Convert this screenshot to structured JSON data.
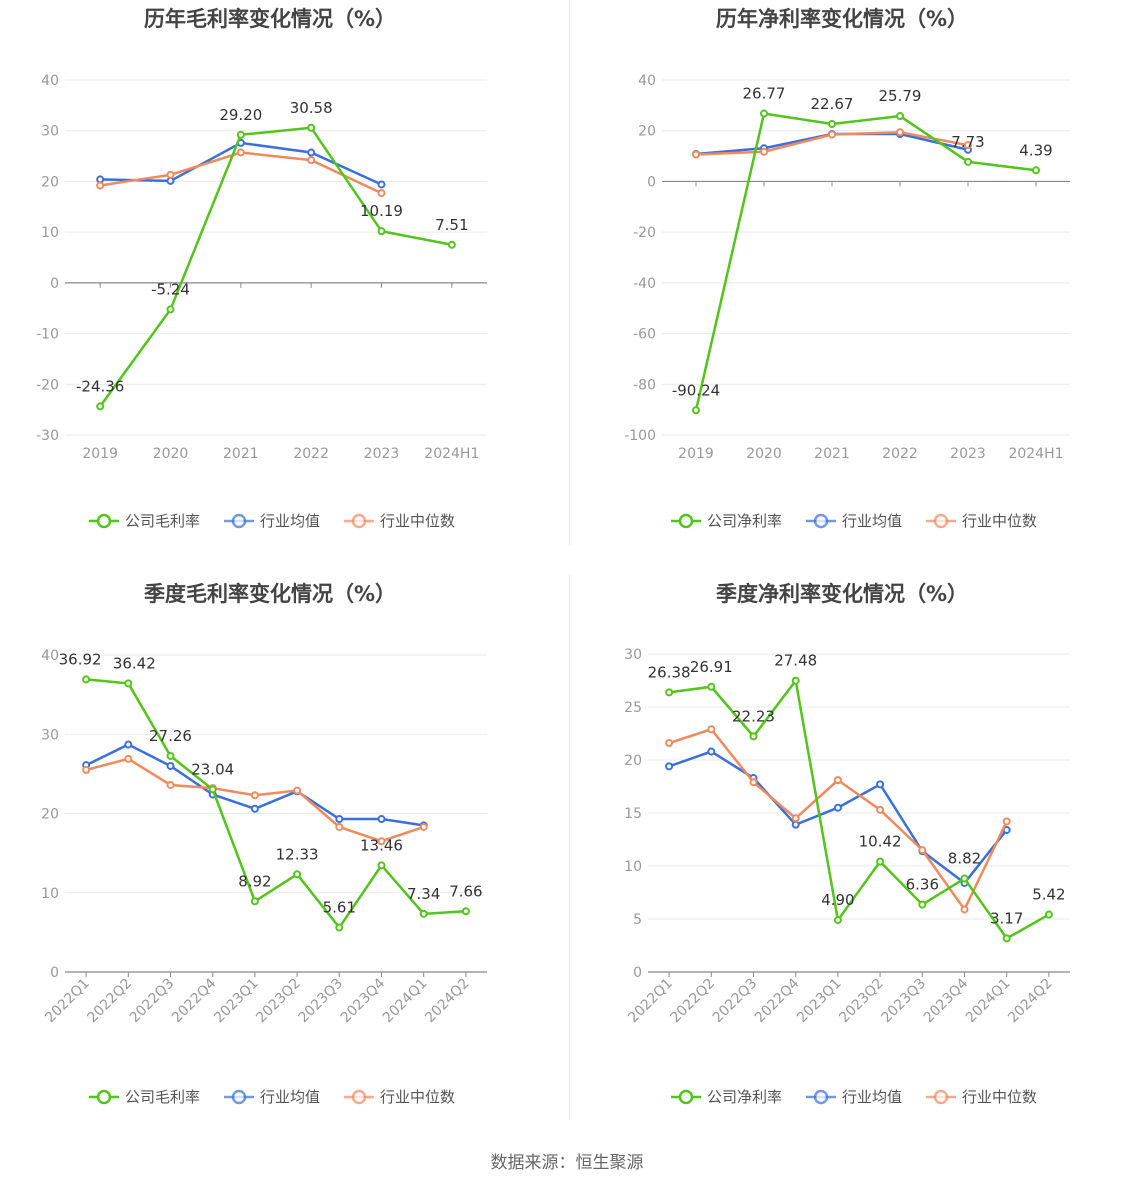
{
  "footer": {
    "source": "数据来源：恒生聚源"
  },
  "colors": {
    "company": "#52c41a",
    "avg": "#3b6fdc",
    "median": "#f08a5d",
    "axis": "#999999",
    "grid": "#e6e9f0"
  },
  "chart_data": [
    {
      "type": "line",
      "title": "历年毛利率变化情况（%）",
      "categories": [
        "2019",
        "2020",
        "2021",
        "2022",
        "2023",
        "2024H1"
      ],
      "ylim": [
        -30,
        40
      ],
      "yticks": [
        "40",
        "30",
        "20",
        "10",
        "0",
        "-10",
        "-20",
        "-30"
      ],
      "ytick_values": [
        40,
        30,
        20,
        10,
        0,
        -10,
        -20,
        -30
      ],
      "rotate_labels": false,
      "series": [
        {
          "name": "公司毛利率",
          "color": "company",
          "values": [
            -24.36,
            -5.24,
            29.2,
            30.58,
            10.19,
            7.51
          ],
          "labels": [
            "-24.36",
            "-5.24",
            "29.20",
            "30.58",
            "10.19",
            "7.51"
          ]
        },
        {
          "name": "行业均值",
          "color": "avg",
          "values": [
            20.4,
            20.1,
            27.6,
            25.7,
            19.4,
            null
          ]
        },
        {
          "name": "行业中位数",
          "color": "median",
          "values": [
            19.2,
            21.3,
            25.7,
            24.2,
            17.7,
            null
          ]
        }
      ]
    },
    {
      "type": "line",
      "title": "历年净利率变化情况（%）",
      "categories": [
        "2019",
        "2020",
        "2021",
        "2022",
        "2023",
        "2024H1"
      ],
      "ylim": [
        -100,
        40
      ],
      "yticks": [
        "40",
        "20",
        "0",
        "-20",
        "-40",
        "-60",
        "-80",
        "-100"
      ],
      "ytick_values": [
        40,
        20,
        0,
        -20,
        -40,
        -60,
        -80,
        -100
      ],
      "rotate_labels": false,
      "series": [
        {
          "name": "公司净利率",
          "color": "company",
          "values": [
            -90.24,
            26.77,
            22.67,
            25.79,
            7.73,
            4.39
          ],
          "labels": [
            "-90.24",
            "26.77",
            "22.67",
            "25.79",
            "7.73",
            "4.39"
          ]
        },
        {
          "name": "行业均值",
          "color": "avg",
          "values": [
            10.8,
            13.1,
            18.7,
            18.7,
            12.5,
            null
          ]
        },
        {
          "name": "行业中位数",
          "color": "median",
          "values": [
            10.6,
            11.7,
            18.5,
            19.4,
            14.3,
            null
          ]
        }
      ]
    },
    {
      "type": "line",
      "title": "季度毛利率变化情况（%）",
      "categories": [
        "2022Q1",
        "2022Q2",
        "2022Q3",
        "2022Q4",
        "2023Q1",
        "2023Q2",
        "2023Q3",
        "2023Q4",
        "2024Q1",
        "2024Q2"
      ],
      "ylim": [
        0,
        40
      ],
      "yticks": [
        "40",
        "30",
        "20",
        "10",
        "0"
      ],
      "ytick_values": [
        40,
        30,
        20,
        10,
        0
      ],
      "rotate_labels": true,
      "series": [
        {
          "name": "公司毛利率",
          "color": "company",
          "values": [
            36.92,
            36.42,
            27.26,
            23.04,
            8.92,
            12.33,
            5.61,
            13.46,
            7.34,
            7.66
          ],
          "labels": [
            "36.92",
            "36.42",
            "27.26",
            "23.04",
            "8.92",
            "12.33",
            "5.61",
            "13.46",
            "7.34",
            "7.66"
          ]
        },
        {
          "name": "行业均值",
          "color": "avg",
          "values": [
            26.1,
            28.7,
            26.0,
            22.4,
            20.6,
            22.8,
            19.3,
            19.3,
            18.5,
            null
          ]
        },
        {
          "name": "行业中位数",
          "color": "median",
          "values": [
            25.5,
            26.9,
            23.6,
            23.2,
            22.3,
            22.9,
            18.3,
            16.5,
            18.3,
            null
          ]
        }
      ]
    },
    {
      "type": "line",
      "title": "季度净利率变化情况（%）",
      "categories": [
        "2022Q1",
        "2022Q2",
        "2022Q3",
        "2022Q4",
        "2023Q1",
        "2023Q2",
        "2023Q3",
        "2023Q4",
        "2024Q1",
        "2024Q2"
      ],
      "ylim": [
        0,
        30
      ],
      "yticks": [
        "30",
        "25",
        "20",
        "15",
        "10",
        "5",
        "0"
      ],
      "ytick_values": [
        30,
        25,
        20,
        15,
        10,
        5,
        0
      ],
      "rotate_labels": true,
      "series": [
        {
          "name": "公司净利率",
          "color": "company",
          "values": [
            26.38,
            26.91,
            22.23,
            27.48,
            4.9,
            10.42,
            6.36,
            8.82,
            3.17,
            5.42
          ],
          "labels": [
            "26.38",
            "26.91",
            "22.23",
            "27.48",
            "4.90",
            "10.42",
            "6.36",
            "8.82",
            "3.17",
            "5.42"
          ]
        },
        {
          "name": "行业均值",
          "color": "avg",
          "values": [
            19.4,
            20.8,
            18.3,
            13.9,
            15.5,
            17.7,
            11.4,
            8.4,
            13.4,
            null
          ]
        },
        {
          "name": "行业中位数",
          "color": "median",
          "values": [
            21.6,
            22.9,
            17.9,
            14.5,
            18.1,
            15.3,
            11.5,
            5.9,
            14.2,
            null
          ]
        }
      ]
    }
  ]
}
